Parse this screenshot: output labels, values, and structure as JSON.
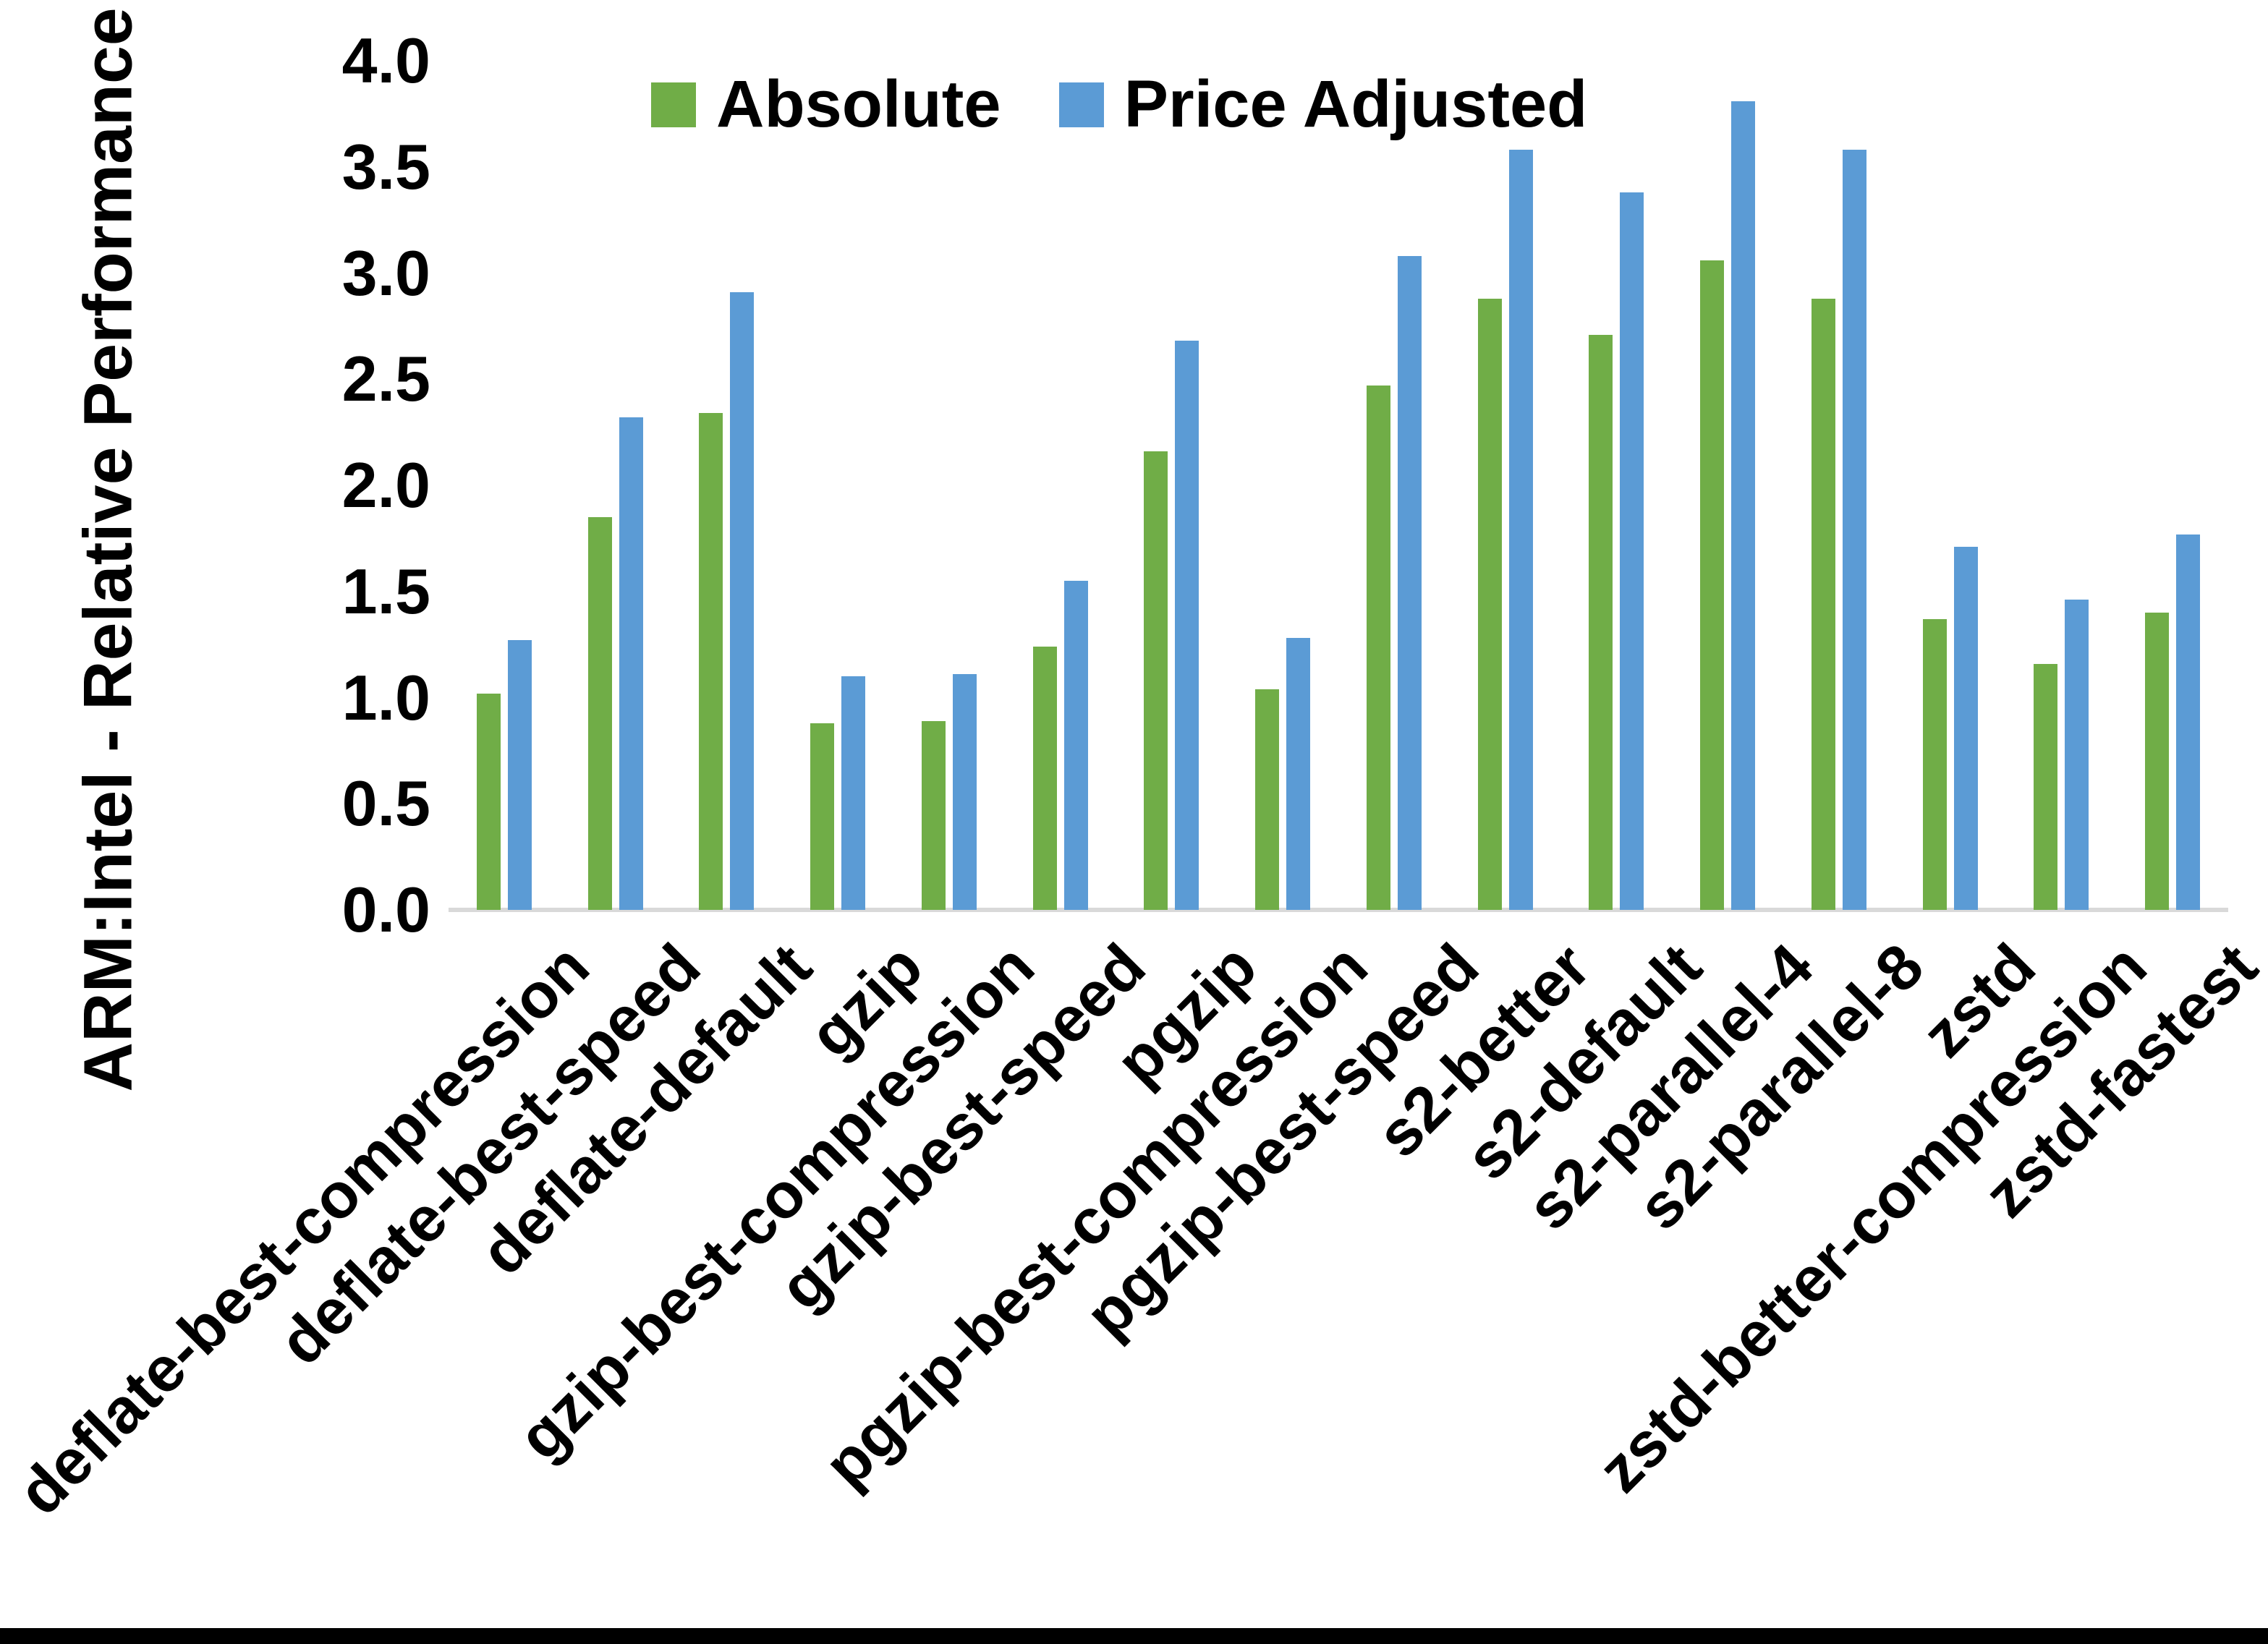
{
  "chart_data": {
    "type": "bar",
    "title": "",
    "ylabel": "ARM:Intel - Relative Performance",
    "xlabel": "",
    "ylim": [
      0.0,
      4.0
    ],
    "ytick_step": 0.5,
    "ytick_labels": [
      "0.0",
      "0.5",
      "1.0",
      "1.5",
      "2.0",
      "2.5",
      "3.0",
      "3.5",
      "4.0"
    ],
    "grid": false,
    "legend_position": "top-center",
    "categories": [
      "deflate-best-compression",
      "deflate-best-speed",
      "deflate-default",
      "gzip",
      "gzip-best-compression",
      "gzip-best-speed",
      "pgzip",
      "pgzip-best-compression",
      "pgzip-best-speed",
      "s2-better",
      "s2-default",
      "s2-parallel-4",
      "s2-parallel-8",
      "zstd",
      "zstd-better-compression",
      "zstd-fastest"
    ],
    "series": [
      {
        "name": "Absolute",
        "color": "#70AD47",
        "values": [
          1.02,
          1.85,
          2.34,
          0.88,
          0.89,
          1.24,
          2.16,
          1.04,
          2.47,
          2.88,
          2.71,
          3.06,
          2.88,
          1.37,
          1.16,
          1.4
        ]
      },
      {
        "name": "Price Adjusted",
        "color": "#5B9BD5",
        "values": [
          1.27,
          2.32,
          2.91,
          1.1,
          1.11,
          1.55,
          2.68,
          1.28,
          3.08,
          3.58,
          3.38,
          3.81,
          3.58,
          1.71,
          1.46,
          1.77
        ]
      }
    ]
  },
  "colors": {
    "background": "#ffffff",
    "axis_line": "#d9d9d9",
    "text": "#000000",
    "bottom_edge": "#000000"
  }
}
